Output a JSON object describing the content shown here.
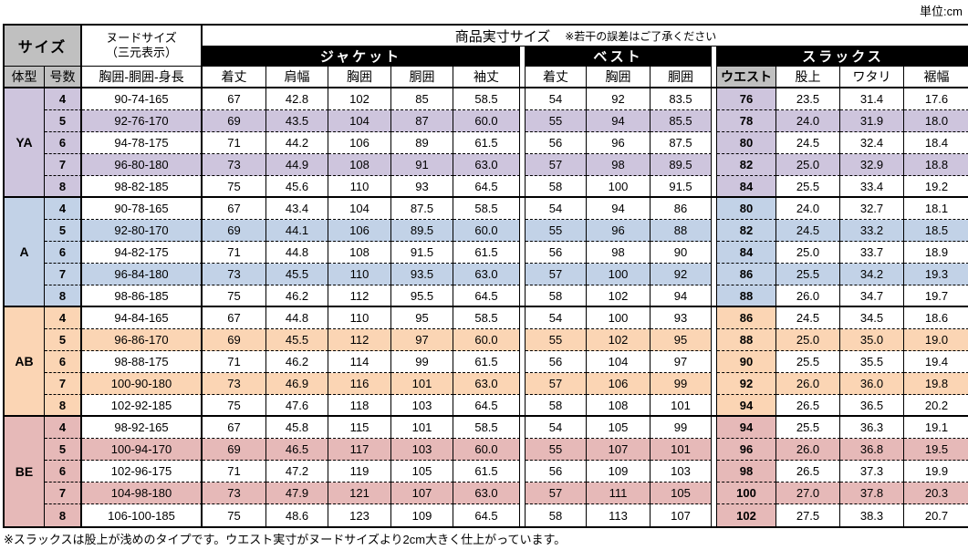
{
  "unit_label": "単位:cm",
  "header": {
    "size": "サイズ",
    "nude_size_line1": "ヌードサイズ",
    "nude_size_line2": "（三元表示）",
    "product_size": "商品実寸サイズ",
    "product_size_note": "※若干の誤差はご了承ください",
    "groups": [
      "ジャケット",
      "ベスト",
      "スラックス"
    ],
    "body_type": "体型",
    "size_number": "号数",
    "nude_columns": "胸囲-胴囲-身長",
    "jacket_columns": [
      "着丈",
      "肩幅",
      "胸囲",
      "胴囲",
      "袖丈"
    ],
    "vest_columns": [
      "着丈",
      "胸囲",
      "胴囲"
    ],
    "slacks_columns": [
      "ウエスト",
      "股上",
      "ワタリ",
      "裾幅"
    ]
  },
  "colors": {
    "header_gray": "#C0C0C0",
    "ya": "#CEC5DD",
    "a": "#C2D2E7",
    "ab": "#FBD5B4",
    "be": "#E6B9B8"
  },
  "groups": [
    {
      "body_type": "YA",
      "color_key": "ya",
      "rows": [
        {
          "no": "4",
          "nude": "90-74-165",
          "jacket": [
            "67",
            "42.8",
            "102",
            "85",
            "58.5"
          ],
          "vest": [
            "54",
            "92",
            "83.5"
          ],
          "slacks": [
            "76",
            "23.5",
            "31.4",
            "17.6"
          ]
        },
        {
          "no": "5",
          "nude": "92-76-170",
          "jacket": [
            "69",
            "43.5",
            "104",
            "87",
            "60.0"
          ],
          "vest": [
            "55",
            "94",
            "85.5"
          ],
          "slacks": [
            "78",
            "24.0",
            "31.9",
            "18.0"
          ]
        },
        {
          "no": "6",
          "nude": "94-78-175",
          "jacket": [
            "71",
            "44.2",
            "106",
            "89",
            "61.5"
          ],
          "vest": [
            "56",
            "96",
            "87.5"
          ],
          "slacks": [
            "80",
            "24.5",
            "32.4",
            "18.4"
          ]
        },
        {
          "no": "7",
          "nude": "96-80-180",
          "jacket": [
            "73",
            "44.9",
            "108",
            "91",
            "63.0"
          ],
          "vest": [
            "57",
            "98",
            "89.5"
          ],
          "slacks": [
            "82",
            "25.0",
            "32.9",
            "18.8"
          ]
        },
        {
          "no": "8",
          "nude": "98-82-185",
          "jacket": [
            "75",
            "45.6",
            "110",
            "93",
            "64.5"
          ],
          "vest": [
            "58",
            "100",
            "91.5"
          ],
          "slacks": [
            "84",
            "25.5",
            "33.4",
            "19.2"
          ]
        }
      ]
    },
    {
      "body_type": "A",
      "color_key": "a",
      "rows": [
        {
          "no": "4",
          "nude": "90-78-165",
          "jacket": [
            "67",
            "43.4",
            "104",
            "87.5",
            "58.5"
          ],
          "vest": [
            "54",
            "94",
            "86"
          ],
          "slacks": [
            "80",
            "24.0",
            "32.7",
            "18.1"
          ]
        },
        {
          "no": "5",
          "nude": "92-80-170",
          "jacket": [
            "69",
            "44.1",
            "106",
            "89.5",
            "60.0"
          ],
          "vest": [
            "55",
            "96",
            "88"
          ],
          "slacks": [
            "82",
            "24.5",
            "33.2",
            "18.5"
          ]
        },
        {
          "no": "6",
          "nude": "94-82-175",
          "jacket": [
            "71",
            "44.8",
            "108",
            "91.5",
            "61.5"
          ],
          "vest": [
            "56",
            "98",
            "90"
          ],
          "slacks": [
            "84",
            "25.0",
            "33.7",
            "18.9"
          ]
        },
        {
          "no": "7",
          "nude": "96-84-180",
          "jacket": [
            "73",
            "45.5",
            "110",
            "93.5",
            "63.0"
          ],
          "vest": [
            "57",
            "100",
            "92"
          ],
          "slacks": [
            "86",
            "25.5",
            "34.2",
            "19.3"
          ]
        },
        {
          "no": "8",
          "nude": "98-86-185",
          "jacket": [
            "75",
            "46.2",
            "112",
            "95.5",
            "64.5"
          ],
          "vest": [
            "58",
            "102",
            "94"
          ],
          "slacks": [
            "88",
            "26.0",
            "34.7",
            "19.7"
          ]
        }
      ]
    },
    {
      "body_type": "AB",
      "color_key": "ab",
      "rows": [
        {
          "no": "4",
          "nude": "94-84-165",
          "jacket": [
            "67",
            "44.8",
            "110",
            "95",
            "58.5"
          ],
          "vest": [
            "54",
            "100",
            "93"
          ],
          "slacks": [
            "86",
            "24.5",
            "34.5",
            "18.6"
          ]
        },
        {
          "no": "5",
          "nude": "96-86-170",
          "jacket": [
            "69",
            "45.5",
            "112",
            "97",
            "60.0"
          ],
          "vest": [
            "55",
            "102",
            "95"
          ],
          "slacks": [
            "88",
            "25.0",
            "35.0",
            "19.0"
          ]
        },
        {
          "no": "6",
          "nude": "98-88-175",
          "jacket": [
            "71",
            "46.2",
            "114",
            "99",
            "61.5"
          ],
          "vest": [
            "56",
            "104",
            "97"
          ],
          "slacks": [
            "90",
            "25.5",
            "35.5",
            "19.4"
          ]
        },
        {
          "no": "7",
          "nude": "100-90-180",
          "jacket": [
            "73",
            "46.9",
            "116",
            "101",
            "63.0"
          ],
          "vest": [
            "57",
            "106",
            "99"
          ],
          "slacks": [
            "92",
            "26.0",
            "36.0",
            "19.8"
          ]
        },
        {
          "no": "8",
          "nude": "102-92-185",
          "jacket": [
            "75",
            "47.6",
            "118",
            "103",
            "64.5"
          ],
          "vest": [
            "58",
            "108",
            "101"
          ],
          "slacks": [
            "94",
            "26.5",
            "36.5",
            "20.2"
          ]
        }
      ]
    },
    {
      "body_type": "BE",
      "color_key": "be",
      "rows": [
        {
          "no": "4",
          "nude": "98-92-165",
          "jacket": [
            "67",
            "45.8",
            "115",
            "101",
            "58.5"
          ],
          "vest": [
            "54",
            "105",
            "99"
          ],
          "slacks": [
            "94",
            "25.5",
            "36.3",
            "19.1"
          ]
        },
        {
          "no": "5",
          "nude": "100-94-170",
          "jacket": [
            "69",
            "46.5",
            "117",
            "103",
            "60.0"
          ],
          "vest": [
            "55",
            "107",
            "101"
          ],
          "slacks": [
            "96",
            "26.0",
            "36.8",
            "19.5"
          ]
        },
        {
          "no": "6",
          "nude": "102-96-175",
          "jacket": [
            "71",
            "47.2",
            "119",
            "105",
            "61.5"
          ],
          "vest": [
            "56",
            "109",
            "103"
          ],
          "slacks": [
            "98",
            "26.5",
            "37.3",
            "19.9"
          ]
        },
        {
          "no": "7",
          "nude": "104-98-180",
          "jacket": [
            "73",
            "47.9",
            "121",
            "107",
            "63.0"
          ],
          "vest": [
            "57",
            "111",
            "105"
          ],
          "slacks": [
            "100",
            "27.0",
            "37.8",
            "20.3"
          ]
        },
        {
          "no": "8",
          "nude": "106-100-185",
          "jacket": [
            "75",
            "48.6",
            "123",
            "109",
            "64.5"
          ],
          "vest": [
            "58",
            "113",
            "107"
          ],
          "slacks": [
            "102",
            "27.5",
            "38.3",
            "20.7"
          ]
        }
      ]
    }
  ],
  "footnote": "※スラックスは股上が浅めのタイプです。ウエスト実寸がヌードサイズより2cm大きく仕上がっています。"
}
